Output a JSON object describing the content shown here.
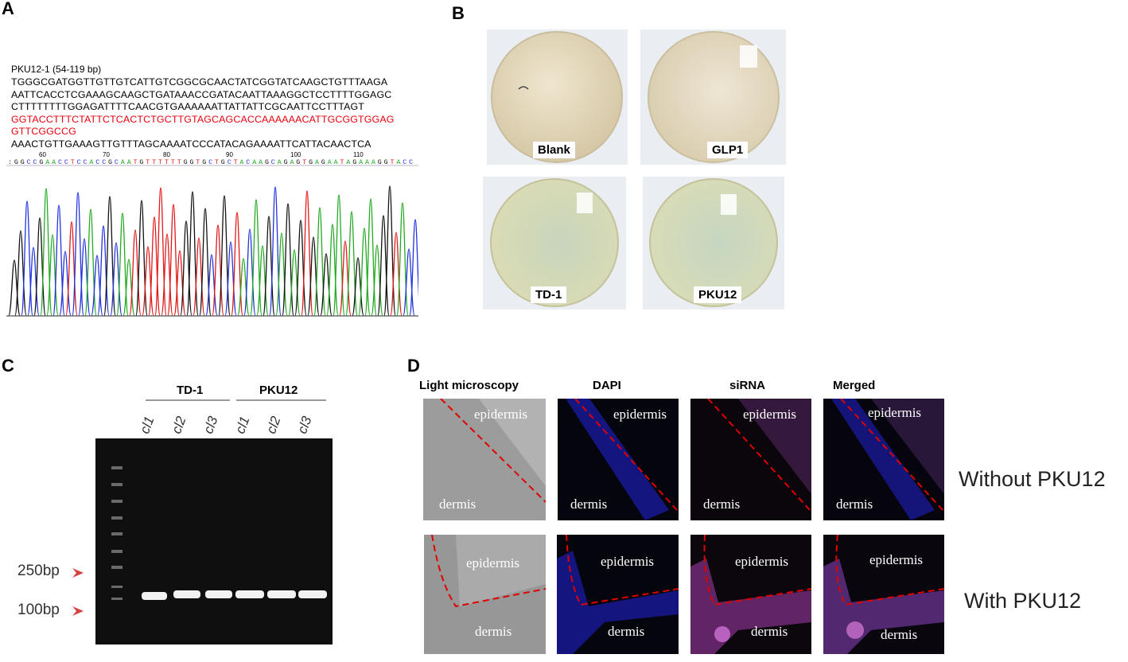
{
  "panels": {
    "a": "A",
    "b": "B",
    "c": "C",
    "d": "D"
  },
  "panel_a": {
    "title": "PKU12-1 (54-119 bp)",
    "lines": [
      {
        "text": "TGGGCGATGGTTGTTGTCATTGTCGGCGCAACTATCGGTATCAAGCTGTTTAAGA",
        "color": "#000000"
      },
      {
        "text": "AATTCACCTCGAAAGCAAGCTGATAAACCGATACAATTAAAGGCTCCTTTTGGAGC",
        "color": "#000000"
      },
      {
        "text": "CTTTTTTTTGGAGATTTTCAACGTGAAAAAATTATTATTCGCAATTCCTTTAGT",
        "color": "#000000"
      },
      {
        "text": "GGTACCTTTCTATTCTCACTCTGCTTGTAGCAGCACCAAAAAACATTGCGGTGGAG",
        "color": "#e8000c"
      },
      {
        "text": "GTTCGGCCG",
        "color": "#e8000c"
      },
      {
        "text": "AAACTGTTGAAAGTTGTTTAGCAAAATCCCATACAGAAAATTCATTACAACTCA",
        "color": "#000000"
      }
    ],
    "positions": [
      "60",
      "70",
      "80",
      "90",
      "100",
      "110"
    ],
    "basecalls": ":GGCCGAACCTCCACCGCAATGTTTTTTGGTGCTGCTACAAGCAGAGTGAGAATAGAAAGGTACC",
    "base_colors": {
      "A": "#22aa22",
      "C": "#2233dd",
      "G": "#111111",
      "T": "#e01818"
    }
  },
  "panel_b": {
    "plates": [
      {
        "label": "Blank",
        "tint": "#e4d6b8"
      },
      {
        "label": "GLP1",
        "tint": "#e6dac4"
      },
      {
        "label": "TD-1",
        "tint": "#d3dab8"
      },
      {
        "label": "PKU12",
        "tint": "#d1dbbd"
      }
    ]
  },
  "panel_c": {
    "groups": [
      "TD-1",
      "PKU12"
    ],
    "lanes": [
      "cl1",
      "cl2",
      "cl3",
      "cl1",
      "cl2",
      "cl3"
    ],
    "markers": [
      "250bp",
      "100bp"
    ]
  },
  "panel_d": {
    "columns": [
      "Light  microscopy",
      "DAPI",
      "siRNA",
      "Merged"
    ],
    "rows": [
      "Without PKU12",
      "With PKU12"
    ],
    "tissue_labels": {
      "top": "epidermis",
      "bottom": "dermis"
    }
  }
}
